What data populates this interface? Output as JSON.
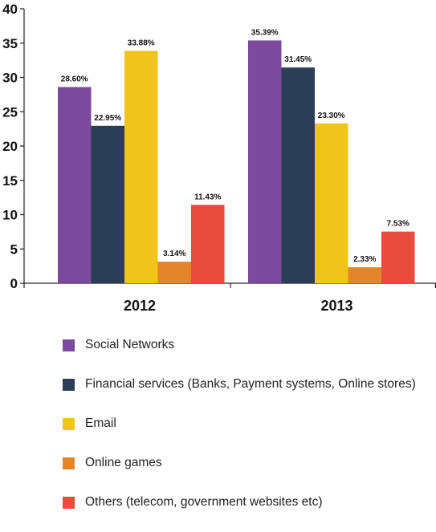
{
  "chart_data": {
    "type": "bar",
    "categories": [
      "2012",
      "2013"
    ],
    "series": [
      {
        "name": "Social Networks",
        "color": "#7b4a9c",
        "values": [
          28.6,
          35.39
        ],
        "labels": [
          "28.60%",
          "35.39%"
        ]
      },
      {
        "name": "Financial services (Banks, Payment systems, Online stores)",
        "color": "#2c3e55",
        "values": [
          22.95,
          31.45
        ],
        "labels": [
          "22.95%",
          "31.45%"
        ]
      },
      {
        "name": "Email",
        "color": "#f0c418",
        "values": [
          33.88,
          23.3
        ],
        "labels": [
          "33.88%",
          "23.30%"
        ]
      },
      {
        "name": "Online games",
        "color": "#e5852a",
        "values": [
          3.14,
          2.33
        ],
        "labels": [
          "3.14%",
          "2.33%"
        ]
      },
      {
        "name": "Others (telecom, government websites etc)",
        "color": "#e84c3d",
        "values": [
          11.43,
          7.53
        ],
        "labels": [
          "11.43%",
          "7.53%"
        ]
      }
    ],
    "yticks": [
      "0",
      "5",
      "10",
      "15",
      "20",
      "25",
      "30",
      "35",
      "40"
    ],
    "ylim": [
      0,
      40
    ],
    "grid": false,
    "legend_position": "bottom"
  }
}
